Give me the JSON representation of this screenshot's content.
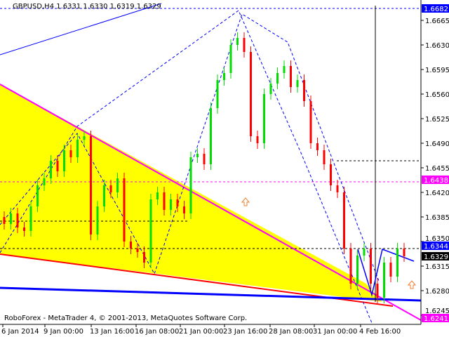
{
  "header": {
    "symbol": "GBPUSD,H4",
    "ohlc": "1.6331 1.6330 1.6319 1.6329"
  },
  "footer": {
    "copyright": "RoboForex - MetaTrader 4, © 2001-2013, MetaQuotes Software Corp."
  },
  "colors": {
    "bull": "#00dd00",
    "bear": "#ff0000",
    "triangle_fill": "#ffff00",
    "magenta": "#ff00ff",
    "blue": "#0000ff",
    "current": "#000000"
  },
  "chart_data": {
    "type": "candlestick",
    "title": "GBPUSD,H4",
    "ylim": [
      1.6235,
      1.6692
    ],
    "grid": false,
    "y_ticks": [
      "1.6665",
      "1.6630",
      "1.6595",
      "1.6560",
      "1.6525",
      "1.6490",
      "1.6455",
      "1.6420",
      "1.6385",
      "1.6350",
      "1.6315",
      "1.6280",
      "1.6245"
    ],
    "x_ticks": [
      "6 Jan 2014",
      "9 Jan 00:00",
      "13 Jan 16:00",
      "16 Jan 08:00",
      "21 Jan 00:00",
      "23 Jan 16:00",
      "28 Jan 08:00",
      "31 Jan 00:00",
      "4 Feb 16:00"
    ],
    "closes": [
      1.6375,
      1.639,
      1.637,
      1.6365,
      1.64,
      1.643,
      1.644,
      1.6465,
      1.645,
      1.648,
      1.647,
      1.6495,
      1.65,
      1.636,
      1.64,
      1.643,
      1.642,
      1.644,
      1.635,
      1.634,
      1.6335,
      1.632,
      1.641,
      1.642,
      1.6395,
      1.641,
      1.64,
      1.639,
      1.647,
      1.6475,
      1.646,
      1.654,
      1.658,
      1.659,
      1.663,
      1.664,
      1.662,
      1.65,
      1.649,
      1.656,
      1.6575,
      1.659,
      1.66,
      1.657,
      1.658,
      1.655,
      1.649,
      1.648,
      1.646,
      1.643,
      1.642,
      1.634,
      1.629,
      1.633,
      1.634,
      1.629,
      1.627,
      1.632,
      1.63,
      1.634,
      1.6329
    ],
    "price_labels": [
      {
        "value": "1.6682",
        "color": "#0000ff"
      },
      {
        "value": "1.6438",
        "color": "#ff00ff"
      },
      {
        "value": "1.6344",
        "color": "#0000ff"
      },
      {
        "value": "1.6329",
        "color": "#000000"
      },
      {
        "value": "1.6241",
        "color": "#ff00ff"
      }
    ]
  }
}
